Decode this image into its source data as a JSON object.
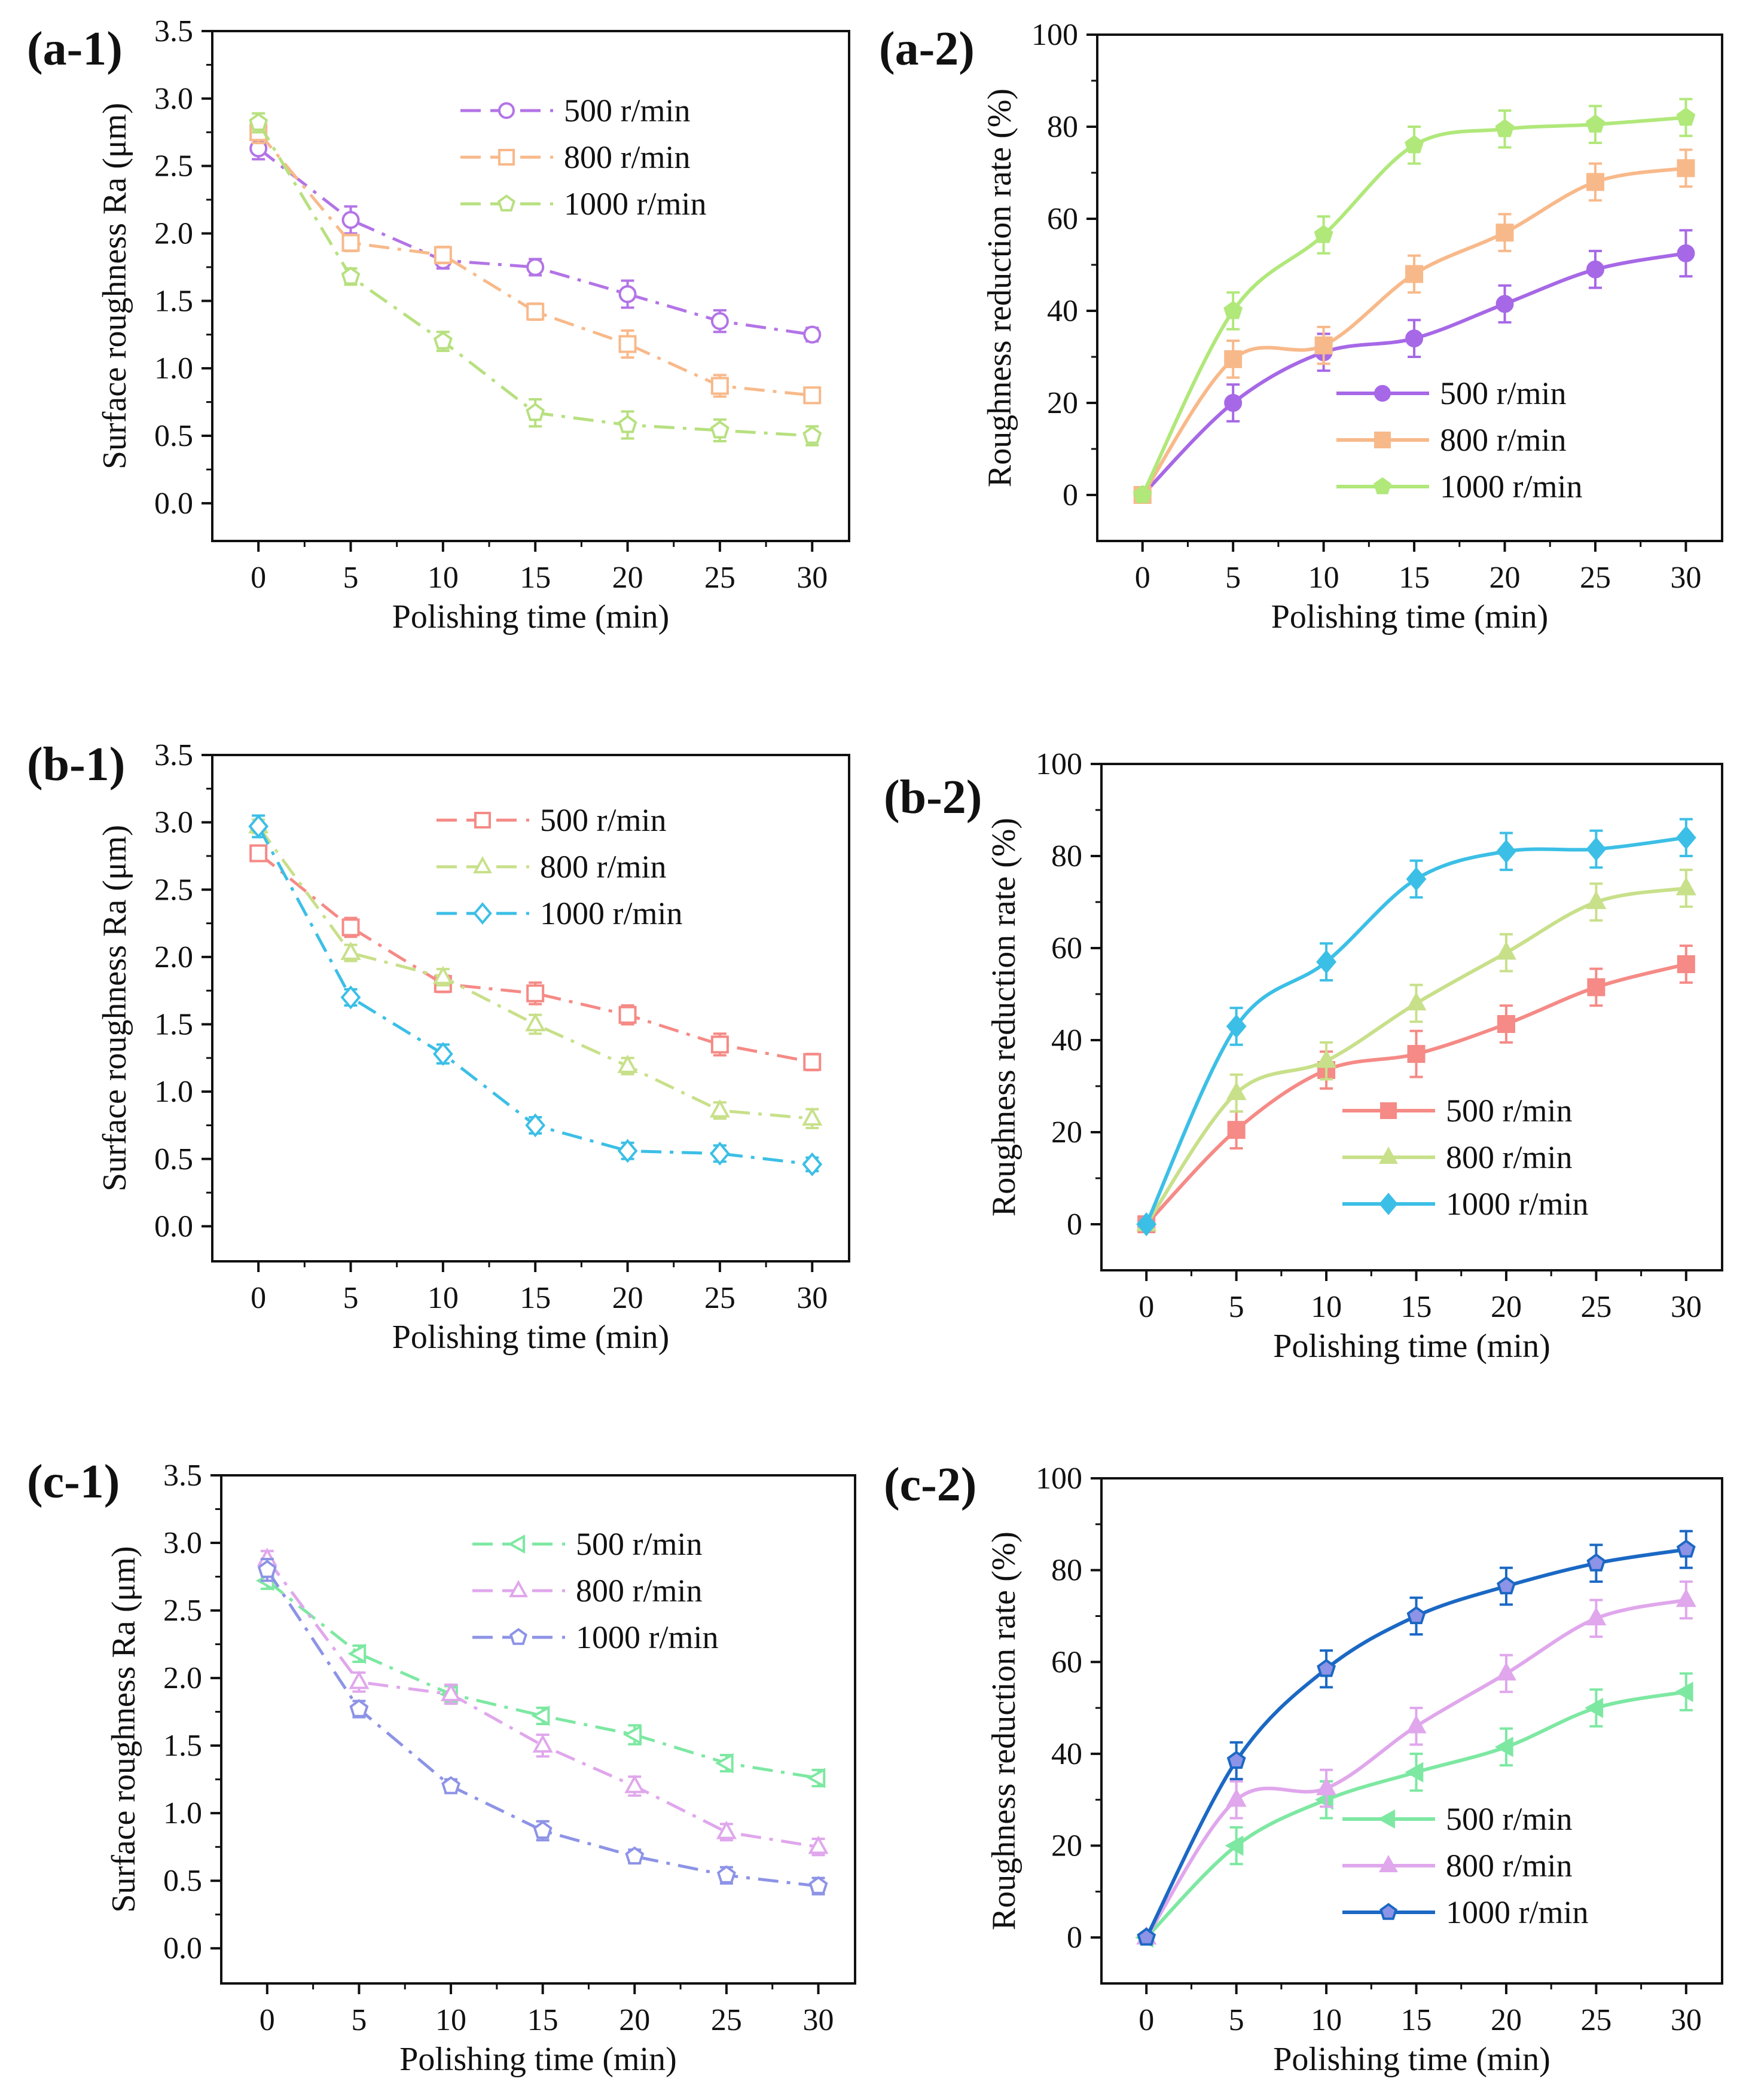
{
  "figure": {
    "description_units": "Roughness plotted in µm; reduction rate in %",
    "colors": {
      "purple": "#b374e6",
      "orange": "#f7b98a",
      "lightgreen": "#b7e07f",
      "salmon": "#f58a86",
      "yellowgreen": "#c8e08a",
      "cyan": "#3cbfe6",
      "mint": "#7de8a2",
      "pink": "#e0a7ec",
      "periwinkle": "#8d93e6",
      "violet": "#a668e6",
      "peach": "#f8b98a",
      "lime": "#b0e87a",
      "darkblue": "#1b68c4"
    }
  },
  "chart_data": [
    {
      "id": "a1",
      "panel_label": "(a-1)",
      "type": "line",
      "xlabel": "Polishing time (min)",
      "ylabel": "Surface roughness Ra (μm)",
      "xlim": [
        -2.5,
        32
      ],
      "ylim": [
        -0.28,
        3.5
      ],
      "xticks": [
        0,
        5,
        10,
        15,
        20,
        25,
        30
      ],
      "yticks": [
        0.0,
        0.5,
        1.0,
        1.5,
        2.0,
        2.5,
        3.0,
        3.5
      ],
      "ytick_labels": [
        "0.0",
        "0.5",
        "1.0",
        "1.5",
        "2.0",
        "2.5",
        "3.0",
        "3.5"
      ],
      "line_style": "dashdot",
      "marker_fill": "open",
      "legend_position": "top-right",
      "legend_line": "dash",
      "x": [
        0,
        5,
        10,
        15,
        20,
        25,
        30
      ],
      "series": [
        {
          "name": "500 r/min",
          "color": "#b374e6",
          "marker": "circle",
          "values": [
            2.63,
            2.1,
            1.8,
            1.75,
            1.55,
            1.35,
            1.25
          ],
          "errors": [
            0.08,
            0.1,
            0.06,
            0.06,
            0.1,
            0.08,
            0.05
          ]
        },
        {
          "name": "800 r/min",
          "color": "#f8b98a",
          "marker": "square",
          "values": [
            2.75,
            1.93,
            1.84,
            1.42,
            1.18,
            0.87,
            0.8
          ],
          "errors": [
            0.08,
            0.06,
            0.06,
            0.06,
            0.1,
            0.08,
            0.05
          ]
        },
        {
          "name": "1000 r/min",
          "color": "#b7e07f",
          "marker": "pentagon",
          "values": [
            2.82,
            1.68,
            1.2,
            0.67,
            0.58,
            0.54,
            0.5
          ],
          "errors": [
            0.07,
            0.06,
            0.07,
            0.1,
            0.1,
            0.08,
            0.07
          ]
        }
      ]
    },
    {
      "id": "a2",
      "panel_label": "(a-2)",
      "type": "line",
      "xlabel": "Polishing time (min)",
      "ylabel": "Roughness reduction rate (%)",
      "xlim": [
        -2.5,
        32
      ],
      "ylim": [
        -10,
        100
      ],
      "xticks": [
        0,
        5,
        10,
        15,
        20,
        25,
        30
      ],
      "yticks": [
        0,
        20,
        40,
        60,
        80,
        100
      ],
      "ytick_labels": [
        "0",
        "20",
        "40",
        "60",
        "80",
        "100"
      ],
      "line_style": "solid",
      "marker_fill": "filled",
      "legend_position": "bottom-right",
      "legend_line": "solid",
      "x": [
        0,
        5,
        10,
        15,
        20,
        25,
        30
      ],
      "series": [
        {
          "name": "500 r/min",
          "color": "#a668e6",
          "marker": "circle",
          "values": [
            0,
            20,
            31,
            34,
            41.5,
            49,
            52.5
          ],
          "errors": [
            0,
            4,
            4,
            4,
            4,
            4,
            5
          ]
        },
        {
          "name": "800 r/min",
          "color": "#f8b98a",
          "marker": "square",
          "values": [
            0,
            29.5,
            32.5,
            48,
            57,
            68,
            71
          ],
          "errors": [
            0,
            4,
            4,
            4,
            4,
            4,
            4
          ]
        },
        {
          "name": "1000 r/min",
          "color": "#b0e87a",
          "marker": "pentagon",
          "values": [
            0,
            40,
            56.5,
            76,
            79.5,
            80.5,
            82
          ],
          "errors": [
            0,
            4,
            4,
            4,
            4,
            4,
            4
          ]
        }
      ]
    },
    {
      "id": "b1",
      "panel_label": "(b-1)",
      "type": "line",
      "xlabel": "Polishing time (min)",
      "ylabel": "Surface roughness Ra (μm)",
      "xlim": [
        -2.5,
        32
      ],
      "ylim": [
        -0.26,
        3.5
      ],
      "xticks": [
        0,
        5,
        10,
        15,
        20,
        25,
        30
      ],
      "yticks": [
        0.0,
        0.5,
        1.0,
        1.5,
        2.0,
        2.5,
        3.0,
        3.5
      ],
      "ytick_labels": [
        "0.0",
        "0.5",
        "1.0",
        "1.5",
        "2.0",
        "2.5",
        "3.0",
        "3.5"
      ],
      "line_style": "dashdot",
      "marker_fill": "open",
      "legend_position": "top-right",
      "legend_line": "dash",
      "x": [
        0,
        5,
        10,
        15,
        20,
        25,
        30
      ],
      "series": [
        {
          "name": "500 r/min",
          "color": "#f58a86",
          "marker": "square",
          "values": [
            2.77,
            2.22,
            1.8,
            1.73,
            1.57,
            1.35,
            1.22
          ],
          "errors": [
            0.05,
            0.07,
            0.06,
            0.08,
            0.07,
            0.08,
            0.06
          ]
        },
        {
          "name": "800 r/min",
          "color": "#c8e08a",
          "marker": "triangle",
          "values": [
            2.97,
            2.03,
            1.85,
            1.5,
            1.19,
            0.86,
            0.8
          ],
          "errors": [
            0.05,
            0.06,
            0.06,
            0.07,
            0.06,
            0.06,
            0.07
          ]
        },
        {
          "name": "1000 r/min",
          "color": "#3cbfe6",
          "marker": "diamond",
          "values": [
            2.97,
            1.7,
            1.28,
            0.75,
            0.56,
            0.54,
            0.46
          ],
          "errors": [
            0.08,
            0.06,
            0.07,
            0.06,
            0.06,
            0.06,
            0.05
          ]
        }
      ]
    },
    {
      "id": "b2",
      "panel_label": "(b-2)",
      "type": "line",
      "xlabel": "Polishing time (min)",
      "ylabel": "Roughness reduction rate (%)",
      "xlim": [
        -2.5,
        32
      ],
      "ylim": [
        -10,
        100
      ],
      "xticks": [
        0,
        5,
        10,
        15,
        20,
        25,
        30
      ],
      "yticks": [
        0,
        20,
        40,
        60,
        80,
        100
      ],
      "ytick_labels": [
        "0",
        "20",
        "40",
        "60",
        "80",
        "100"
      ],
      "line_style": "solid",
      "marker_fill": "filled",
      "legend_position": "bottom-right",
      "legend_line": "solid",
      "x": [
        0,
        5,
        10,
        15,
        20,
        25,
        30
      ],
      "series": [
        {
          "name": "500 r/min",
          "color": "#f58a86",
          "marker": "square",
          "values": [
            0,
            20.5,
            33.5,
            37,
            43.5,
            51.5,
            56.5
          ],
          "errors": [
            0,
            4,
            4,
            5,
            4,
            4,
            4
          ]
        },
        {
          "name": "800 r/min",
          "color": "#c8e08a",
          "marker": "triangle",
          "values": [
            0,
            28.5,
            35.5,
            48,
            59,
            70,
            73
          ],
          "errors": [
            0,
            4,
            4,
            4,
            4,
            4,
            4
          ]
        },
        {
          "name": "1000 r/min",
          "color": "#3cbfe6",
          "marker": "diamond",
          "values": [
            0,
            43,
            57,
            75,
            81,
            81.5,
            84
          ],
          "errors": [
            0,
            4,
            4,
            4,
            4,
            4,
            4
          ]
        }
      ]
    },
    {
      "id": "c1",
      "panel_label": "(c-1)",
      "type": "line",
      "xlabel": "Polishing time (min)",
      "ylabel": "Surface roughness Ra (μm)",
      "xlim": [
        -2.5,
        32
      ],
      "ylim": [
        -0.26,
        3.5
      ],
      "xticks": [
        0,
        5,
        10,
        15,
        20,
        25,
        30
      ],
      "yticks": [
        0.0,
        0.5,
        1.0,
        1.5,
        2.0,
        2.5,
        3.0,
        3.5
      ],
      "ytick_labels": [
        "0.0",
        "0.5",
        "1.0",
        "1.5",
        "2.0",
        "2.5",
        "3.0",
        "3.5"
      ],
      "line_style": "dashdot",
      "marker_fill": "open",
      "legend_position": "top-right",
      "legend_line": "dash",
      "x": [
        0,
        5,
        10,
        15,
        20,
        25,
        30
      ],
      "series": [
        {
          "name": "500 r/min",
          "color": "#7de8a2",
          "marker": "triangle-left",
          "values": [
            2.72,
            2.18,
            1.88,
            1.72,
            1.58,
            1.37,
            1.26
          ],
          "errors": [
            0.06,
            0.06,
            0.06,
            0.06,
            0.07,
            0.06,
            0.06
          ]
        },
        {
          "name": "800 r/min",
          "color": "#e0a7ec",
          "marker": "triangle",
          "values": [
            2.88,
            1.97,
            1.88,
            1.5,
            1.2,
            0.86,
            0.75
          ],
          "errors": [
            0.06,
            0.07,
            0.07,
            0.08,
            0.07,
            0.06,
            0.06
          ]
        },
        {
          "name": "1000 r/min",
          "color": "#8d93e6",
          "marker": "pentagon",
          "values": [
            2.8,
            1.77,
            1.2,
            0.87,
            0.68,
            0.54,
            0.46
          ],
          "errors": [
            0.08,
            0.06,
            0.05,
            0.07,
            0.05,
            0.06,
            0.06
          ]
        }
      ]
    },
    {
      "id": "c2",
      "panel_label": "(c-2)",
      "type": "line",
      "xlabel": "Polishing time (min)",
      "ylabel": "Roughness reduction rate (%)",
      "xlim": [
        -2.5,
        32
      ],
      "ylim": [
        -10,
        100
      ],
      "xticks": [
        0,
        5,
        10,
        15,
        20,
        25,
        30
      ],
      "yticks": [
        0,
        20,
        40,
        60,
        80,
        100
      ],
      "ytick_labels": [
        "0",
        "20",
        "40",
        "60",
        "80",
        "100"
      ],
      "line_style": "solid",
      "marker_fill": "filled",
      "legend_position": "bottom-right",
      "legend_line": "solid",
      "x": [
        0,
        5,
        10,
        15,
        20,
        25,
        30
      ],
      "series": [
        {
          "name": "500 r/min",
          "color": "#7de8a2",
          "marker": "triangle-left",
          "values": [
            0,
            20,
            30,
            36,
            41.5,
            50,
            53.5
          ],
          "errors": [
            0,
            4,
            4,
            4,
            4,
            4,
            4
          ]
        },
        {
          "name": "800 r/min",
          "color": "#e0a7ec",
          "marker": "triangle",
          "values": [
            0,
            30,
            32.5,
            46,
            57.5,
            69.5,
            73.5
          ],
          "errors": [
            0,
            4,
            4,
            4,
            4,
            4,
            4
          ]
        },
        {
          "name": "1000 r/min",
          "color": "#1b68c4",
          "marker": "pentagon",
          "marker_fill": "#8d93e6",
          "values": [
            0,
            38.5,
            58.5,
            70,
            76.5,
            81.5,
            84.5
          ],
          "errors": [
            0,
            4,
            4,
            4,
            4,
            4,
            4
          ]
        }
      ]
    }
  ]
}
